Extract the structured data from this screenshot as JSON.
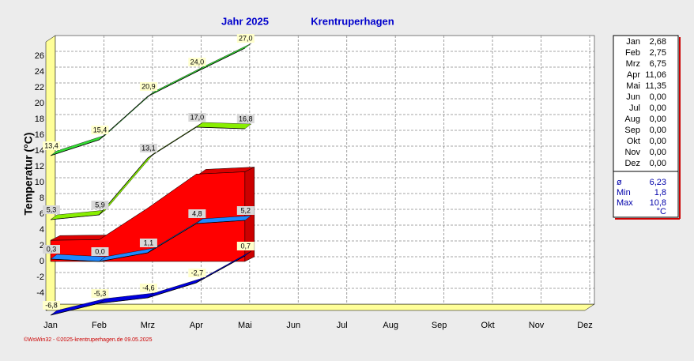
{
  "chart_data": {
    "type": "line",
    "title": "Jahr  2025",
    "subtitle": "Krentruperhagen",
    "y_label": "Temperatur  (°C)",
    "footer": "©WsWin32 - ©2025-krentruperhagen.de  09.05.2025",
    "categories": [
      "Jan",
      "Feb",
      "Mrz",
      "Apr",
      "Mai",
      "Jun",
      "Jul",
      "Aug",
      "Sep",
      "Okt",
      "Nov",
      "Dez"
    ],
    "ylim": [
      -6,
      28
    ],
    "yticks": [
      -4,
      -2,
      0,
      2,
      4,
      6,
      8,
      10,
      12,
      14,
      16,
      18,
      20,
      22,
      24,
      26
    ],
    "grid": true,
    "area": {
      "color": "#ff0000",
      "values": [
        2.68,
        2.75,
        6.75,
        11.06,
        11.35,
        null,
        null,
        null,
        null,
        null,
        null,
        null
      ]
    },
    "series": [
      {
        "color": "#33dd33",
        "values": [
          13.4,
          15.4,
          20.9,
          24.0,
          27.0,
          null,
          null,
          null,
          null,
          null,
          null,
          null
        ],
        "value_labels": [
          "13,4",
          "15,4",
          "20,9",
          "24,0",
          "27,0",
          null,
          null,
          null,
          null,
          null,
          null,
          null
        ]
      },
      {
        "color": "#88ee00",
        "values": [
          5.3,
          5.9,
          13.1,
          17.0,
          16.8,
          null,
          null,
          null,
          null,
          null,
          null,
          null
        ],
        "value_labels": [
          "5,3",
          "5,9",
          "13,1",
          "17,0",
          "16,8",
          null,
          null,
          null,
          null,
          null,
          null,
          null
        ]
      },
      {
        "color": "#1e88ff",
        "values": [
          0.3,
          0.0,
          1.1,
          4.8,
          5.2,
          null,
          null,
          null,
          null,
          null,
          null,
          null
        ],
        "value_labels": [
          "0,3",
          "0,0",
          "1,1",
          "4,8",
          "5,2",
          null,
          null,
          null,
          null,
          null,
          null,
          null
        ]
      },
      {
        "color": "#0000dd",
        "values": [
          -6.8,
          -5.3,
          -4.6,
          -2.7,
          0.7,
          null,
          null,
          null,
          null,
          null,
          null,
          null
        ],
        "value_labels": [
          "-6,8",
          "-5,3",
          "-4,6",
          "-2,7",
          "0,7",
          null,
          null,
          null,
          null,
          null,
          null,
          null
        ]
      }
    ],
    "table": {
      "rows": [
        [
          "Jan",
          "2,68"
        ],
        [
          "Feb",
          "2,75"
        ],
        [
          "Mrz",
          "6,75"
        ],
        [
          "Apr",
          "11,06"
        ],
        [
          "Mai",
          "11,35"
        ],
        [
          "Jun",
          "0,00"
        ],
        [
          "Jul",
          "0,00"
        ],
        [
          "Aug",
          "0,00"
        ],
        [
          "Sep",
          "0,00"
        ],
        [
          "Okt",
          "0,00"
        ],
        [
          "Nov",
          "0,00"
        ],
        [
          "Dez",
          "0,00"
        ]
      ],
      "stats": [
        [
          "ø",
          "6,23"
        ],
        [
          "Min",
          "1,8"
        ],
        [
          "Max",
          "10,8"
        ]
      ],
      "unit": "°C"
    }
  }
}
